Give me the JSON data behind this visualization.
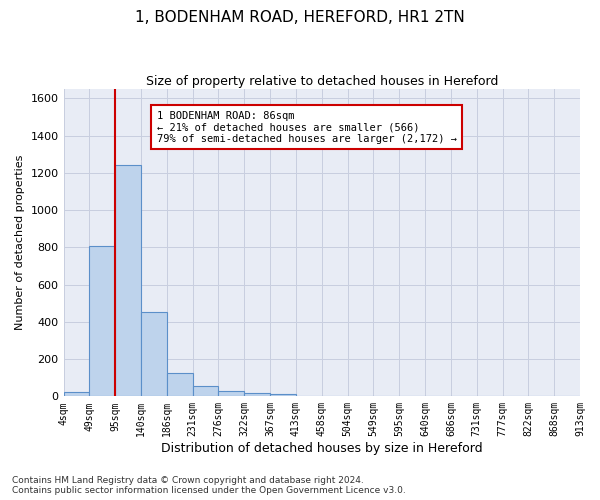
{
  "title": "1, BODENHAM ROAD, HEREFORD, HR1 2TN",
  "subtitle": "Size of property relative to detached houses in Hereford",
  "xlabel": "Distribution of detached houses by size in Hereford",
  "ylabel": "Number of detached properties",
  "bar_values": [
    25,
    810,
    1245,
    455,
    125,
    58,
    27,
    18,
    14,
    0,
    0,
    0,
    0,
    0,
    0,
    0,
    0,
    0,
    0,
    0
  ],
  "bin_labels": [
    "4sqm",
    "49sqm",
    "95sqm",
    "140sqm",
    "186sqm",
    "231sqm",
    "276sqm",
    "322sqm",
    "367sqm",
    "413sqm",
    "458sqm",
    "504sqm",
    "549sqm",
    "595sqm",
    "640sqm",
    "686sqm",
    "731sqm",
    "777sqm",
    "822sqm",
    "868sqm",
    "913sqm"
  ],
  "bar_color": "#bed3ec",
  "bar_edge_color": "#5b8fc9",
  "grid_color": "#c8cedf",
  "background_color": "#e8ecf5",
  "vline_color": "#cc0000",
  "annotation_text": "1 BODENHAM ROAD: 86sqm\n← 21% of detached houses are smaller (566)\n79% of semi-detached houses are larger (2,172) →",
  "annotation_box_color": "#ffffff",
  "annotation_box_edge": "#cc0000",
  "ylim": [
    0,
    1650
  ],
  "yticks": [
    0,
    200,
    400,
    600,
    800,
    1000,
    1200,
    1400,
    1600
  ],
  "footnote": "Contains HM Land Registry data © Crown copyright and database right 2024.\nContains public sector information licensed under the Open Government Licence v3.0."
}
